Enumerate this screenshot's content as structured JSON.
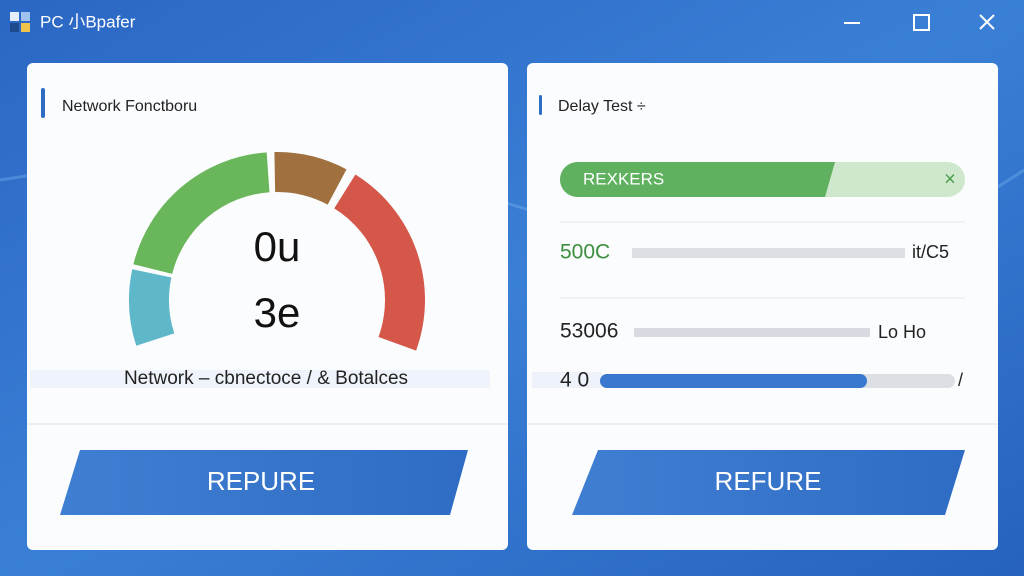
{
  "window": {
    "title": "PC 小Bpafer"
  },
  "network_panel": {
    "title": "Network Fonctboru",
    "gauge": {
      "line1": "0u",
      "line2": "3e"
    },
    "caption": "Network – cbnectoce / & Botalces",
    "button": "REPURE"
  },
  "delay_panel": {
    "title": "Delay Test ÷",
    "status": {
      "label": "REXKERS",
      "close": "×"
    },
    "rows": [
      {
        "label": "500C",
        "value": "it/C5"
      },
      {
        "label": "53006",
        "value": "Lo Ho"
      },
      {
        "label": "4 0",
        "value": "/"
      }
    ],
    "button": "REFURE"
  }
}
